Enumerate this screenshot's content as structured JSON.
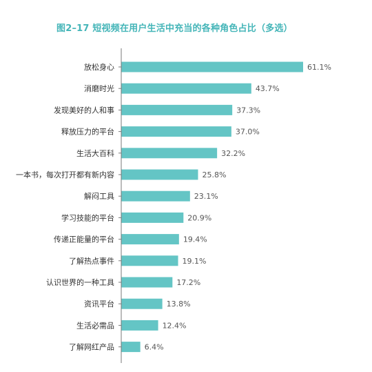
{
  "chart_data": {
    "type": "bar",
    "orientation": "horizontal",
    "title": "图2–17   短视频在用户生活中充当的各种角色占比（多选）",
    "categories": [
      "放松身心",
      "消磨时光",
      "发现美好的人和事",
      "释放压力的平台",
      "生活大百科",
      "一本书，每次打开都有新内容",
      "解闷工具",
      "学习技能的平台",
      "传递正能量的平台",
      "了解热点事件",
      "认识世界的一种工具",
      "资讯平台",
      "生活必需品",
      "了解网红产品"
    ],
    "values": [
      61.1,
      43.7,
      37.3,
      37.0,
      32.2,
      25.8,
      23.1,
      20.9,
      19.4,
      19.1,
      17.2,
      13.8,
      12.4,
      6.4
    ],
    "value_labels": [
      "61.1%",
      "43.7%",
      "37.3%",
      "37.0%",
      "32.2%",
      "25.8%",
      "23.1%",
      "20.9%",
      "19.4%",
      "19.1%",
      "17.2%",
      "13.8%",
      "12.4%",
      "6.4%"
    ],
    "xlabel": "",
    "ylabel": "",
    "xlim": [
      0,
      61.1
    ],
    "grid": false,
    "legend": "none",
    "bar_color": "#64c5c5",
    "axis_color": "#777777",
    "title_color": "#44b5b8"
  }
}
